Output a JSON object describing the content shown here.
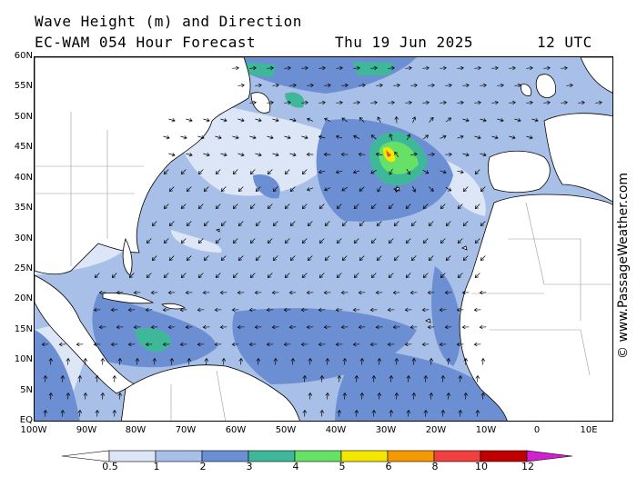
{
  "header": {
    "title": "Wave Height (m) and Direction",
    "model_line": "EC-WAM 054 Hour Forecast",
    "date": "Thu 19 Jun 2025",
    "time": "12 UTC"
  },
  "credit": "© www.PassageWeather.com",
  "axes": {
    "lat_ticks": [
      "60N",
      "55N",
      "50N",
      "45N",
      "40N",
      "35N",
      "30N",
      "25N",
      "20N",
      "15N",
      "10N",
      "5N",
      "EQ"
    ],
    "lon_ticks": [
      "100W",
      "90W",
      "80W",
      "70W",
      "60W",
      "50W",
      "40W",
      "30W",
      "20W",
      "10W",
      "0",
      "10E"
    ]
  },
  "colorbar": {
    "labels": [
      "0.5",
      "1",
      "2",
      "3",
      "4",
      "5",
      "6",
      "8",
      "10",
      "12"
    ],
    "colors": [
      "#dde6f6",
      "#a8c0e8",
      "#6c8fd4",
      "#3fb89a",
      "#66e066",
      "#f4e800",
      "#f49a00",
      "#f04040",
      "#c00000",
      "#d020d0"
    ]
  },
  "palette": {
    "land": "#ffffff",
    "coast": "#000000",
    "border": "#9a9a9a",
    "sea_light": "#dde6f6",
    "sea_mid": "#a8c0e8",
    "sea_dark": "#6c8fd4",
    "sea_teal": "#3fb89a",
    "sea_green": "#66e066",
    "sea_yellow": "#f4e800",
    "arrow": "#000000"
  }
}
